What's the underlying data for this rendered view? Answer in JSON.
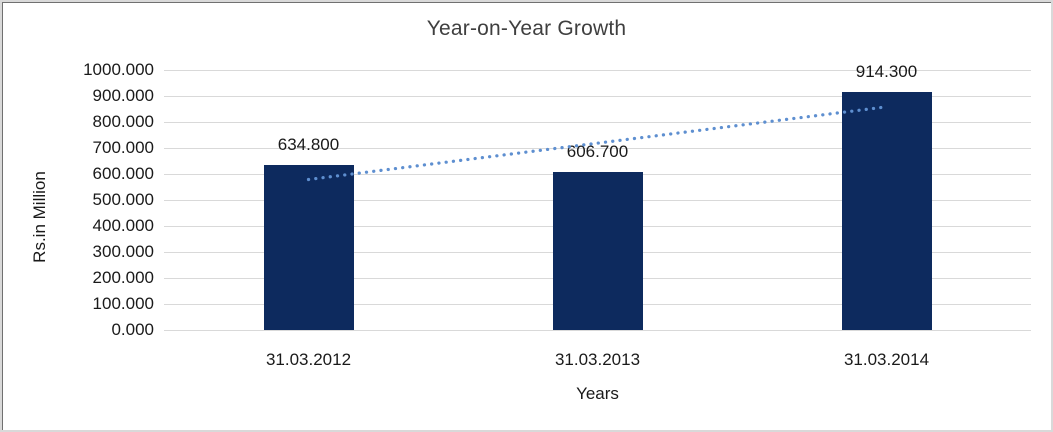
{
  "chart_data": {
    "type": "bar",
    "title": "Year-on-Year Growth",
    "categories": [
      "31.03.2012",
      "31.03.2013",
      "31.03.2014"
    ],
    "values": [
      634.8,
      606.7,
      914.3
    ],
    "value_labels": [
      "634.800",
      "606.700",
      "914.300"
    ],
    "xlabel": "Years",
    "ylabel": "Rs.in Million",
    "ylim": [
      0,
      1000
    ],
    "ytick_step": 100,
    "ytick_labels": [
      "1000.000",
      "900.000",
      "800.000",
      "700.000",
      "600.000",
      "500.000",
      "400.000",
      "300.000",
      "200.000",
      "100.000",
      "0.000"
    ],
    "grid": true,
    "legend": "none",
    "trendline": {
      "style": "dotted",
      "fit": "linear"
    },
    "colors": {
      "bar": "#0d2a5e",
      "trendline": "#5e8fd0",
      "gridline": "#d9d9d9",
      "title_text": "#3f3f3f",
      "axis_text": "#1a1a1a",
      "background": "#ffffff",
      "frame_border": "#d9d9d9",
      "frame_inner_line": "#707070"
    }
  }
}
